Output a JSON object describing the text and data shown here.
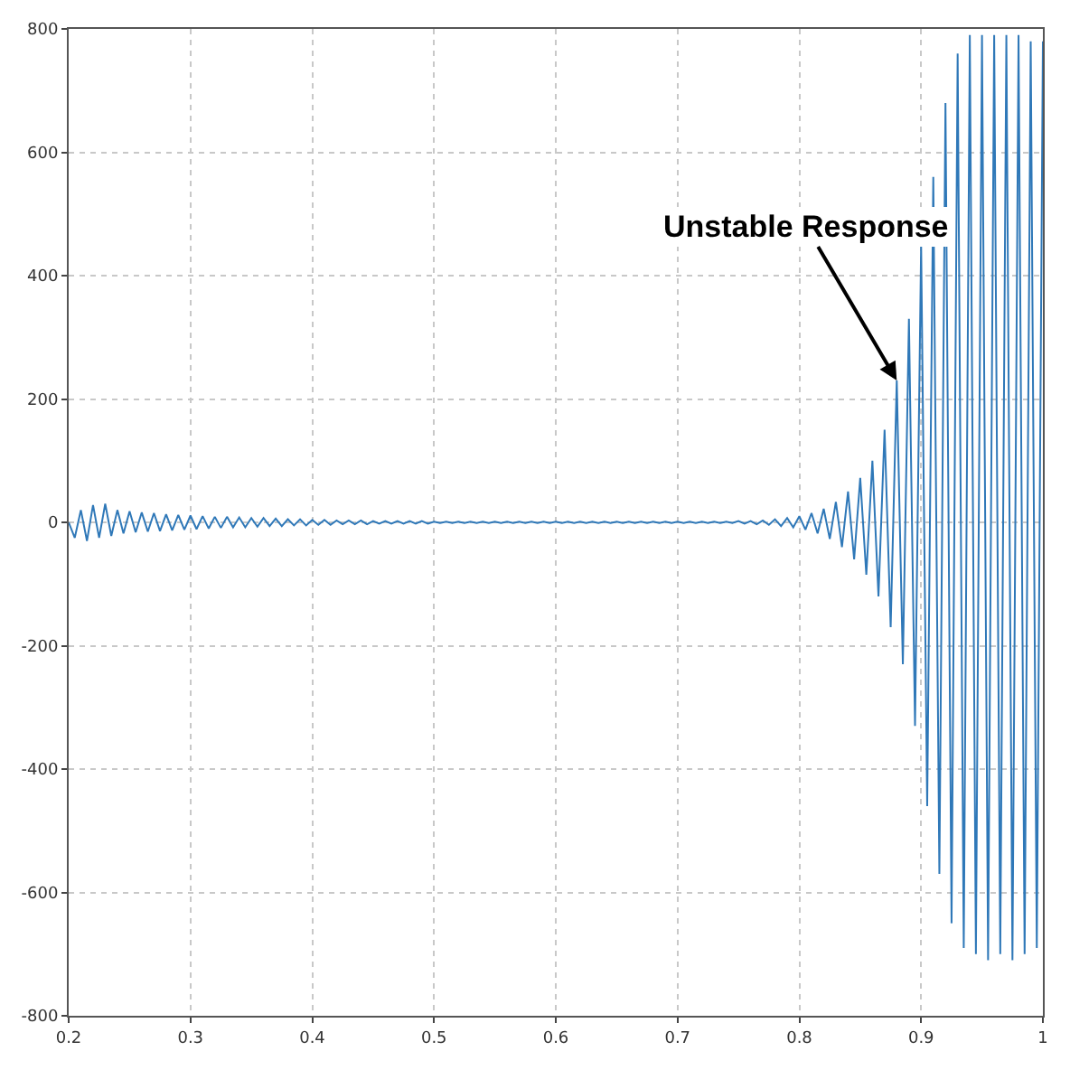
{
  "chart_data": {
    "type": "line",
    "x": [
      0.2,
      0.205,
      0.21,
      0.215,
      0.22,
      0.225,
      0.23,
      0.235,
      0.24,
      0.245,
      0.25,
      0.255,
      0.26,
      0.265,
      0.27,
      0.275,
      0.28,
      0.285,
      0.29,
      0.295,
      0.3,
      0.305,
      0.31,
      0.315,
      0.32,
      0.325,
      0.33,
      0.335,
      0.34,
      0.345,
      0.35,
      0.355,
      0.36,
      0.365,
      0.37,
      0.375,
      0.38,
      0.385,
      0.39,
      0.395,
      0.4,
      0.405,
      0.41,
      0.415,
      0.42,
      0.425,
      0.43,
      0.435,
      0.44,
      0.445,
      0.45,
      0.455,
      0.46,
      0.465,
      0.47,
      0.475,
      0.48,
      0.485,
      0.49,
      0.495,
      0.5,
      0.505,
      0.51,
      0.515,
      0.52,
      0.525,
      0.53,
      0.535,
      0.54,
      0.545,
      0.55,
      0.555,
      0.56,
      0.565,
      0.57,
      0.575,
      0.58,
      0.585,
      0.59,
      0.595,
      0.6,
      0.605,
      0.61,
      0.615,
      0.62,
      0.625,
      0.63,
      0.635,
      0.64,
      0.645,
      0.65,
      0.655,
      0.66,
      0.665,
      0.67,
      0.675,
      0.68,
      0.685,
      0.69,
      0.695,
      0.7,
      0.705,
      0.71,
      0.715,
      0.72,
      0.725,
      0.73,
      0.735,
      0.74,
      0.745,
      0.75,
      0.755,
      0.76,
      0.765,
      0.77,
      0.775,
      0.78,
      0.785,
      0.79,
      0.795,
      0.8,
      0.805,
      0.81,
      0.815,
      0.82,
      0.825,
      0.83,
      0.835,
      0.84,
      0.845,
      0.85,
      0.855,
      0.86,
      0.865,
      0.87,
      0.875,
      0.88,
      0.885,
      0.89,
      0.895,
      0.9,
      0.905,
      0.91,
      0.915,
      0.92,
      0.925,
      0.93,
      0.935,
      0.94,
      0.945,
      0.95,
      0.955,
      0.96,
      0.965,
      0.97,
      0.975,
      0.98,
      0.985,
      0.99,
      0.995,
      1.0
    ],
    "series": [
      {
        "color": "#2f78b8",
        "values": [
          0,
          -25,
          20,
          -30,
          28,
          -25,
          30,
          -22,
          20,
          -18,
          18,
          -16,
          16,
          -15,
          15,
          -14,
          13,
          -13,
          12,
          -12,
          11,
          -11,
          10,
          -10,
          9,
          -9,
          9,
          -8,
          8,
          -8,
          7,
          -7,
          7,
          -6,
          6,
          -6,
          5,
          -5,
          5,
          -5,
          4,
          -4,
          4,
          -4,
          3,
          -3,
          3,
          -3,
          3,
          -3,
          2,
          -2,
          2,
          -2,
          2,
          -2,
          2,
          -2,
          2,
          -2,
          1,
          -1,
          1,
          -1,
          1,
          -1,
          1,
          -1,
          1,
          -1,
          1,
          -1,
          1,
          -1,
          1,
          -1,
          1,
          -1,
          1,
          -1,
          1,
          -1,
          1,
          -1,
          1,
          -1,
          1,
          -1,
          1,
          -1,
          1,
          -1,
          1,
          -1,
          1,
          -1,
          1,
          -1,
          1,
          -1,
          1,
          -1,
          1,
          -1,
          1,
          -1,
          1,
          -1,
          1,
          -1,
          2,
          -2,
          2,
          -3,
          3,
          -4,
          5,
          -6,
          7,
          -8,
          10,
          -12,
          15,
          -18,
          22,
          -27,
          33,
          -40,
          50,
          -60,
          72,
          -85,
          100,
          -120,
          150,
          -170,
          230,
          -230,
          330,
          -330,
          450,
          -460,
          560,
          -570,
          680,
          -650,
          760,
          -690,
          790,
          -700,
          790,
          -710,
          790,
          -700,
          790,
          -710,
          790,
          -700,
          780,
          -690,
          780
        ]
      }
    ],
    "xlim": [
      0.2,
      1
    ],
    "xticks": [
      0.2,
      0.3,
      0.4,
      0.5,
      0.6,
      0.7,
      0.8,
      0.9,
      1
    ],
    "ylim": [
      -800,
      800
    ],
    "yticks": [
      -800,
      -600,
      -400,
      -200,
      0,
      200,
      400,
      600,
      800
    ],
    "grid": true,
    "line_style": "solid",
    "marker": "none",
    "annotations": [
      {
        "text": "Unstable Response",
        "x": 0.88,
        "y": 230
      }
    ]
  }
}
